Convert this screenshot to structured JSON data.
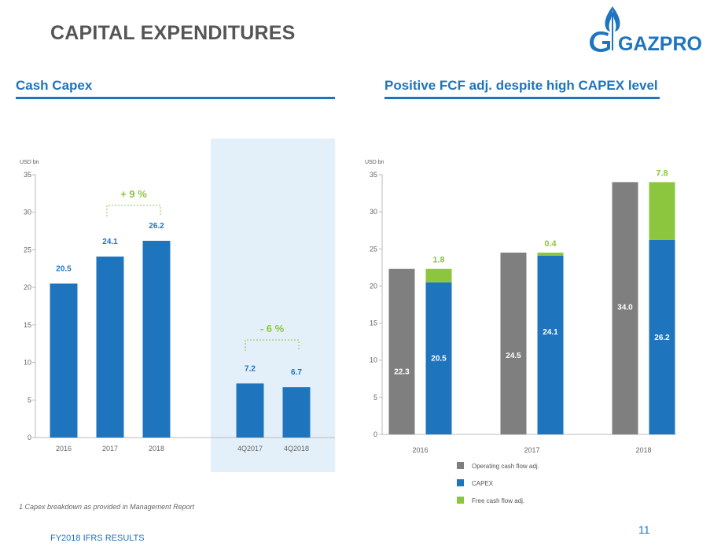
{
  "header": {
    "title": "CAPITAL EXPENDITURES",
    "logo_text": "GAZPROM"
  },
  "left_section_title": "Cash Capex",
  "right_section_title": "Positive FCF adj. despite high CAPEX level",
  "footnote": "1 Capex breakdown as provided in Management Report",
  "footer": "FY2018 IFRS RESULTS",
  "page_number": "11",
  "colors": {
    "blue": "#1f74be",
    "grey": "#7f7f7f",
    "green": "#8cc63f",
    "highlight": "#e3f0fa",
    "text": "#555555"
  },
  "chart_data": [
    {
      "type": "bar",
      "unit_label": "USD bn",
      "categories": [
        "2016",
        "2017",
        "2018",
        "4Q2017",
        "4Q2018"
      ],
      "values": [
        20.5,
        24.1,
        26.2,
        7.2,
        6.7
      ],
      "value_labels": [
        "20.5",
        "24.1",
        "26.2",
        "7.2",
        "6.7"
      ],
      "ylim": [
        0,
        35
      ],
      "yticks": [
        0,
        5,
        10,
        15,
        20,
        25,
        30,
        35
      ],
      "annotations": [
        {
          "text": "+ 9 %",
          "from": "2017",
          "to": "2018"
        },
        {
          "text": "- 6 %",
          "from": "4Q2017",
          "to": "4Q2018"
        }
      ]
    },
    {
      "type": "bar",
      "unit_label": "USD bn",
      "categories": [
        "2016",
        "2017",
        "2018"
      ],
      "ylim": [
        0,
        35
      ],
      "yticks": [
        0,
        5,
        10,
        15,
        20,
        25,
        30,
        35
      ],
      "series": [
        {
          "name": "Operating cash flow adj.",
          "values": [
            22.3,
            24.5,
            34.0
          ],
          "labels": [
            "22.3",
            "24.5",
            "34.0"
          ]
        },
        {
          "name": "CAPEX",
          "values": [
            20.5,
            24.1,
            26.2
          ],
          "labels": [
            "20.5",
            "24.1",
            "26.2"
          ]
        },
        {
          "name": "Free cash flow adj.",
          "values": [
            1.8,
            0.4,
            7.8
          ],
          "labels": [
            "1.8",
            "0.4",
            "7.8"
          ],
          "stacked_on": "CAPEX"
        }
      ],
      "legend_position": "bottom"
    }
  ]
}
